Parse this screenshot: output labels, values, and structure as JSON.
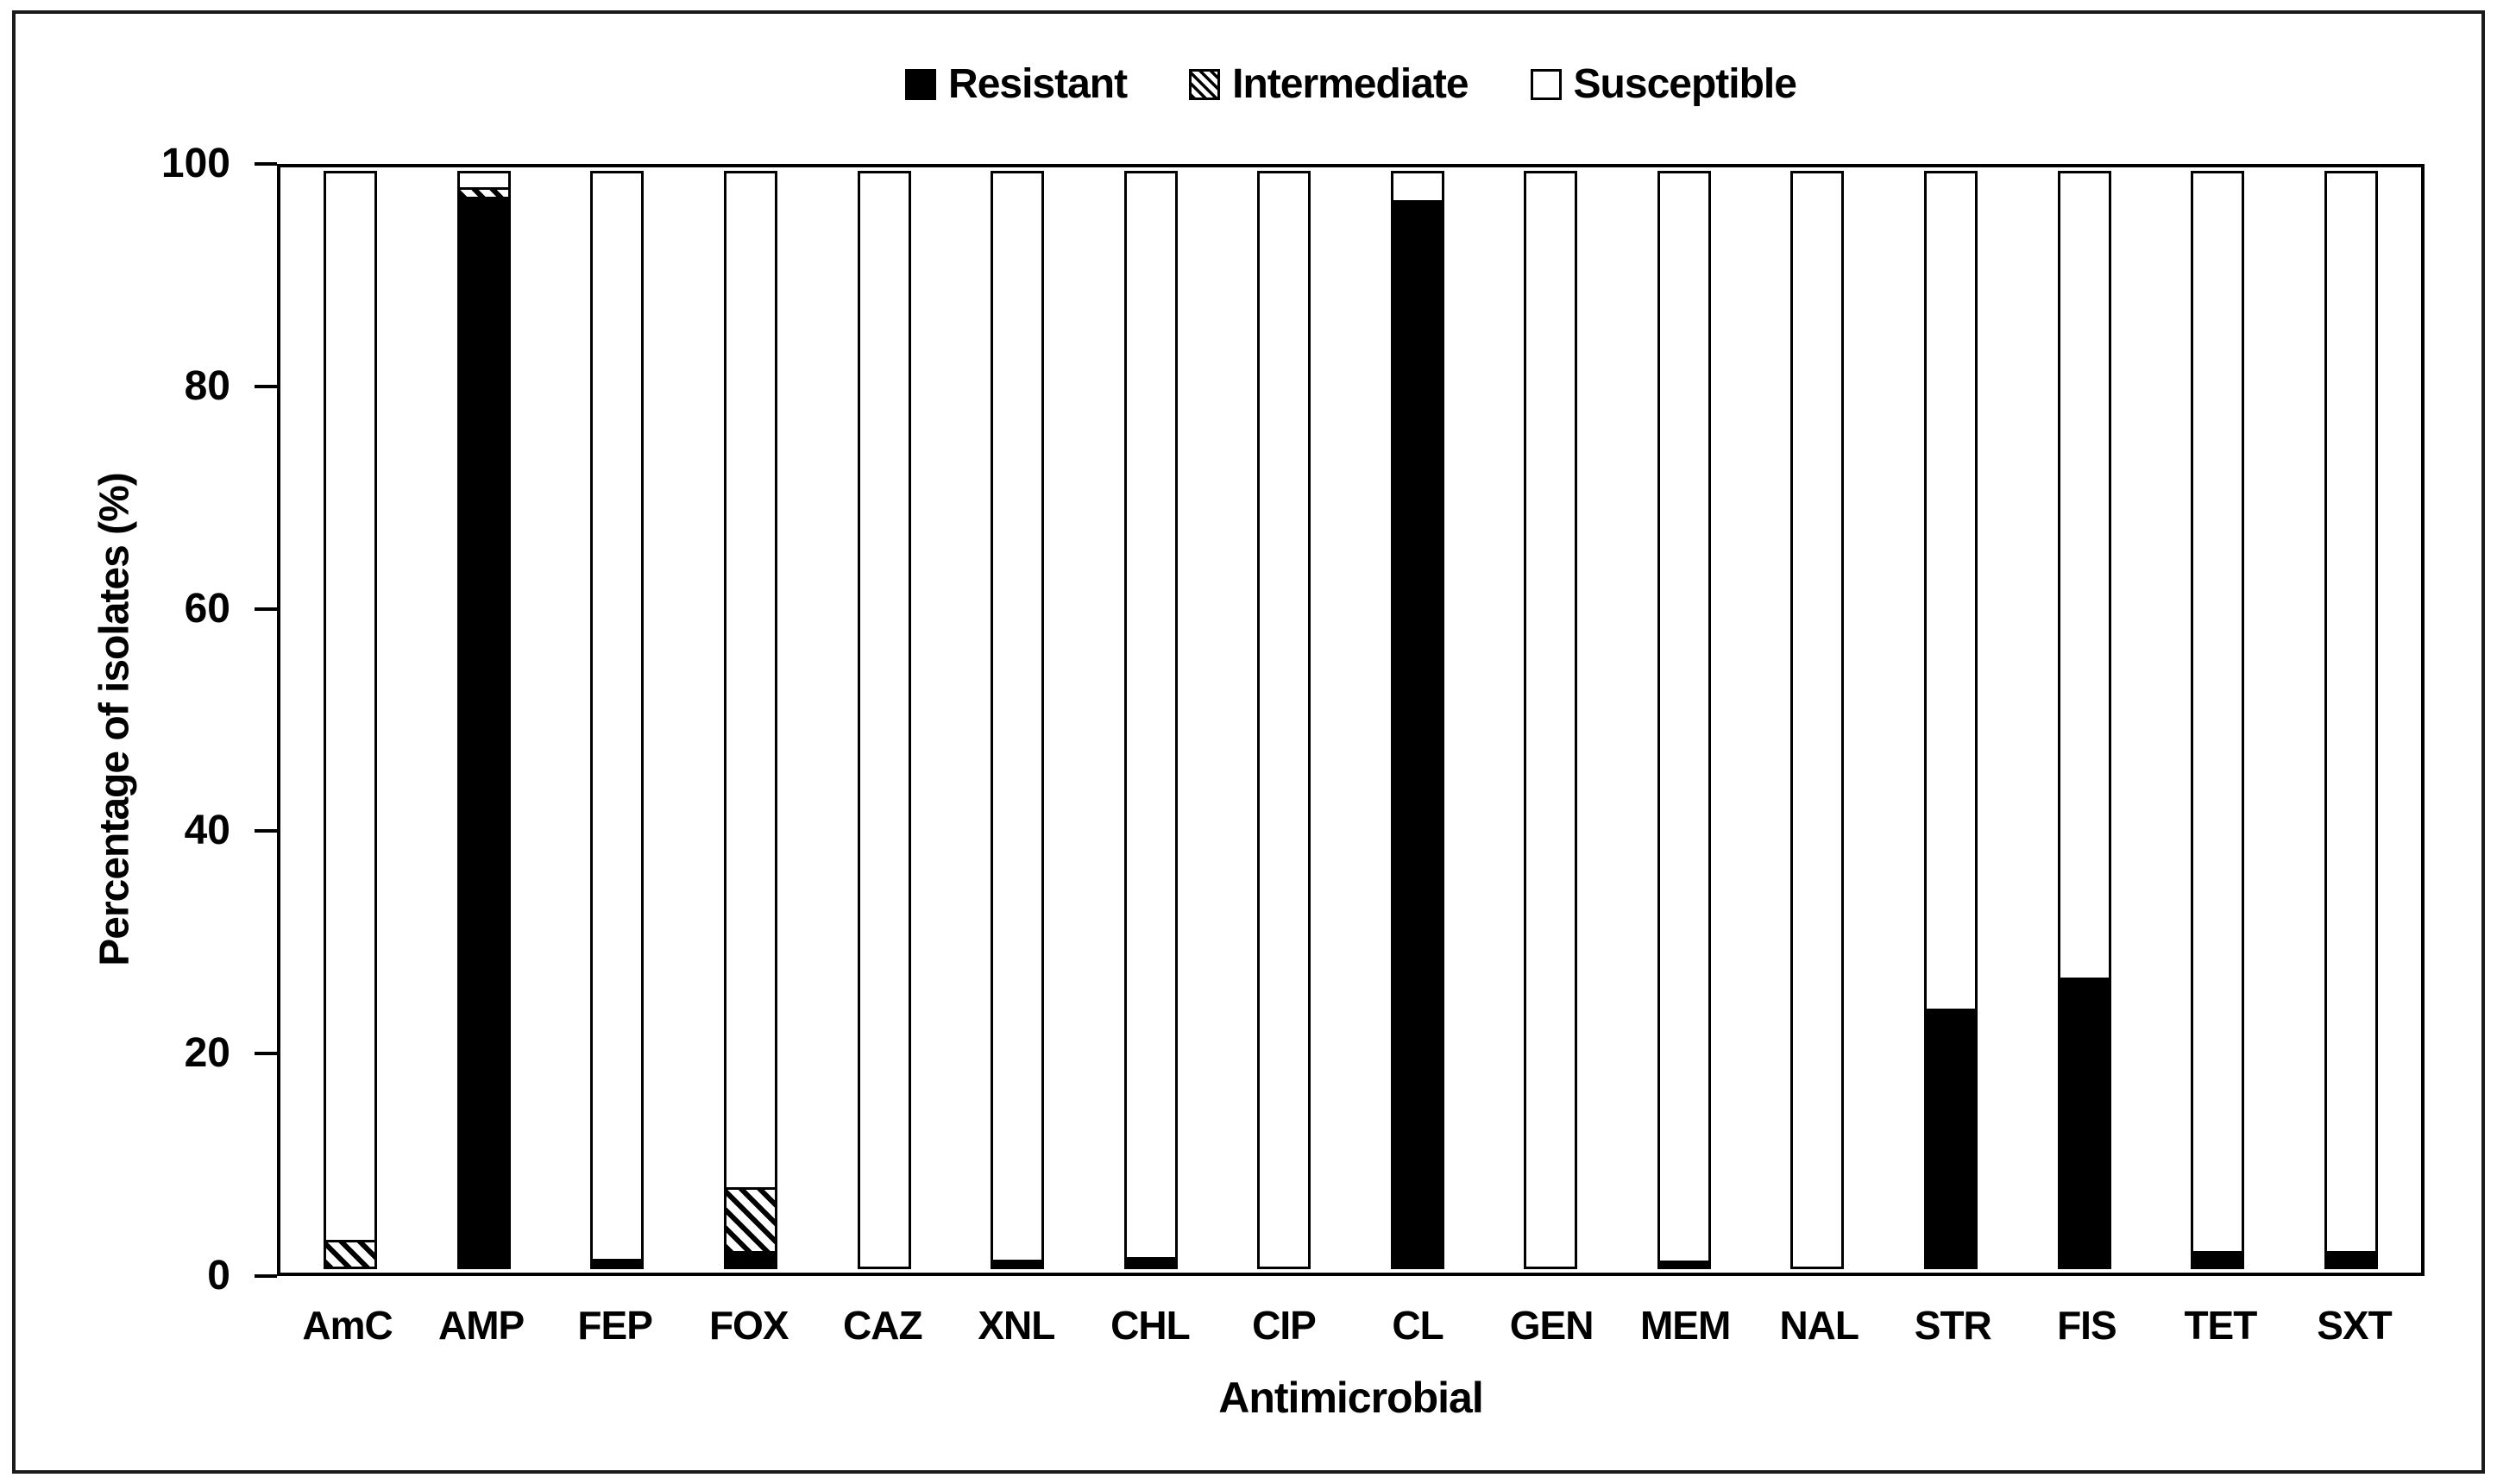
{
  "figure": {
    "background": "#ffffff",
    "frame_color": "#1b1b1b",
    "ink_color": "#000000"
  },
  "legend": {
    "items": [
      {
        "label": "Resistant",
        "style": "solid-black"
      },
      {
        "label": "Intermediate",
        "style": "diagonal-hatch"
      },
      {
        "label": "Susceptible",
        "style": "white"
      }
    ]
  },
  "chart_data": {
    "type": "bar",
    "stacked": true,
    "stack_total": 100,
    "title": "",
    "xlabel": "Antimicrobial",
    "ylabel": "Percentage of isolates (%)",
    "ylim": [
      0,
      100
    ],
    "y_ticks": [
      0,
      20,
      40,
      60,
      80,
      100
    ],
    "grid": false,
    "legend_position": "top-center",
    "bar_outline": "#000000",
    "categories": [
      "AmC",
      "AMP",
      "FEP",
      "FOX",
      "CAZ",
      "XNL",
      "CHL",
      "CIP",
      "CL",
      "GEN",
      "MEM",
      "NAL",
      "STR",
      "FIS",
      "TET",
      "SXT"
    ],
    "series": [
      {
        "name": "Resistant",
        "fill": "solid-black",
        "values": [
          0,
          97.6,
          0.5,
          1.2,
          0,
          0.4,
          0.6,
          0,
          97.3,
          0,
          0.3,
          0,
          23.4,
          26.2,
          1.2,
          1.2
        ]
      },
      {
        "name": "Intermediate",
        "fill": "diagonal-hatch",
        "values": [
          2.2,
          0.9,
          0,
          5.8,
          0,
          0,
          0,
          0,
          0,
          0,
          0,
          0,
          0,
          0,
          0,
          0
        ]
      },
      {
        "name": "Susceptible",
        "fill": "white",
        "values": [
          97.8,
          1.5,
          99.5,
          93.0,
          100,
          99.6,
          99.4,
          100,
          2.7,
          100,
          99.7,
          100,
          76.6,
          73.8,
          98.8,
          98.8
        ]
      }
    ]
  }
}
